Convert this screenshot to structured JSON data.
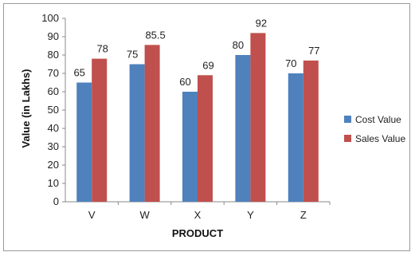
{
  "chart_data": {
    "type": "bar",
    "title": "",
    "xlabel": "PRODUCT",
    "ylabel": "Value (in Lakhs)",
    "ylim": [
      0,
      100
    ],
    "ytick_step": 10,
    "categories": [
      "V",
      "W",
      "X",
      "Y",
      "Z"
    ],
    "series": [
      {
        "name": "Cost Value",
        "values": [
          65,
          75,
          60,
          80,
          70
        ],
        "labels": [
          "65",
          "75",
          "60",
          "80",
          "70"
        ],
        "color": "#4F81BD"
      },
      {
        "name": "Sales Value",
        "values": [
          78,
          85.5,
          69,
          92,
          77
        ],
        "labels": [
          "78",
          "85.5",
          "69",
          "92",
          "77"
        ],
        "color": "#C0504D"
      }
    ],
    "legend_position": "right",
    "grid": false
  }
}
